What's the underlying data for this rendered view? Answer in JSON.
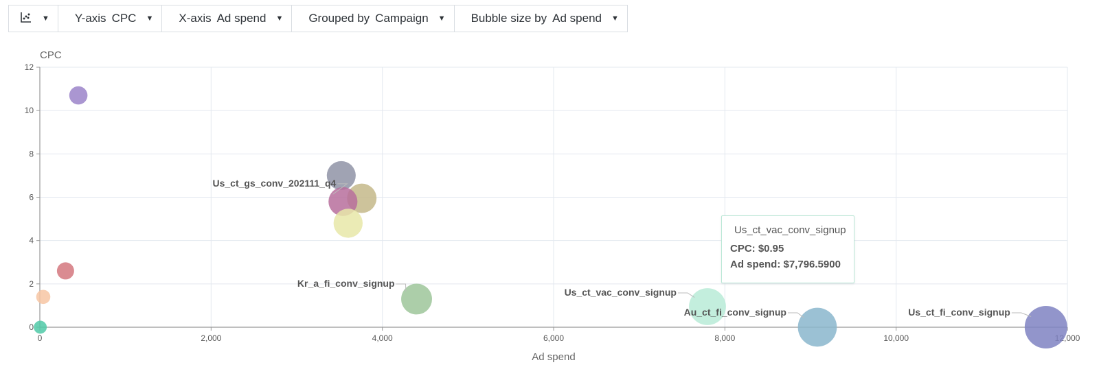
{
  "toolbar": {
    "chart_type_icon": "scatter-chart-icon",
    "items": [
      {
        "key": "Y-axis",
        "value": "CPC"
      },
      {
        "key": "X-axis",
        "value": "Ad spend"
      },
      {
        "key": "Grouped by",
        "value": "Campaign"
      },
      {
        "key": "Bubble size by",
        "value": "Ad spend"
      }
    ]
  },
  "tooltip": {
    "title": "Us_ct_vac_conv_signup",
    "cpc": "CPC: $0.95",
    "ad_spend": "Ad spend: $7,796.5900",
    "color": "#8fdcc0"
  },
  "chart_data": {
    "type": "scatter",
    "xlabel": "Ad spend",
    "ylabel": "CPC",
    "xlim": [
      0,
      12000
    ],
    "ylim": [
      0,
      12
    ],
    "xticks": [
      "0",
      "2,000",
      "4,000",
      "6,000",
      "8,000",
      "10,000",
      "12,000"
    ],
    "yticks": [
      "0",
      "2",
      "4",
      "6",
      "8",
      "10",
      "12"
    ],
    "grid": true,
    "points": [
      {
        "x": 450,
        "y": 10.7,
        "size": 450,
        "color": "#9b84c9",
        "label": ""
      },
      {
        "x": 300,
        "y": 2.6,
        "size": 300,
        "color": "#d4777e",
        "label": ""
      },
      {
        "x": 40,
        "y": 1.4,
        "size": 40,
        "color": "#f7c6a3",
        "label": ""
      },
      {
        "x": 5,
        "y": 0.0,
        "size": 5,
        "color": "#4fc9a7",
        "label": ""
      },
      {
        "x": 3520,
        "y": 7.0,
        "size": 3520,
        "color": "#8f93a6",
        "label": ""
      },
      {
        "x": 3760,
        "y": 5.95,
        "size": 3760,
        "color": "#c4b98a",
        "label": ""
      },
      {
        "x": 3540,
        "y": 5.8,
        "size": 3540,
        "color": "#b76e9c",
        "label": "Us_ct_gs_conv_202111_q4"
      },
      {
        "x": 3600,
        "y": 4.8,
        "size": 3600,
        "color": "#e7e7a8",
        "label": ""
      },
      {
        "x": 4400,
        "y": 1.3,
        "size": 4400,
        "color": "#9dc59a",
        "label": "Kr_a_fi_conv_signup"
      },
      {
        "x": 7796.59,
        "y": 0.95,
        "size": 7796.59,
        "color": "#b9ebd7",
        "label": "Us_ct_vac_conv_signup"
      },
      {
        "x": 9080,
        "y": 0.0,
        "size": 9080,
        "color": "#8ab6cc",
        "label": "Au_ct_fi_conv_signup"
      },
      {
        "x": 11750,
        "y": 0.0,
        "size": 11750,
        "color": "#7f83c2",
        "label": "Us_ct_fi_conv_signup"
      }
    ]
  }
}
